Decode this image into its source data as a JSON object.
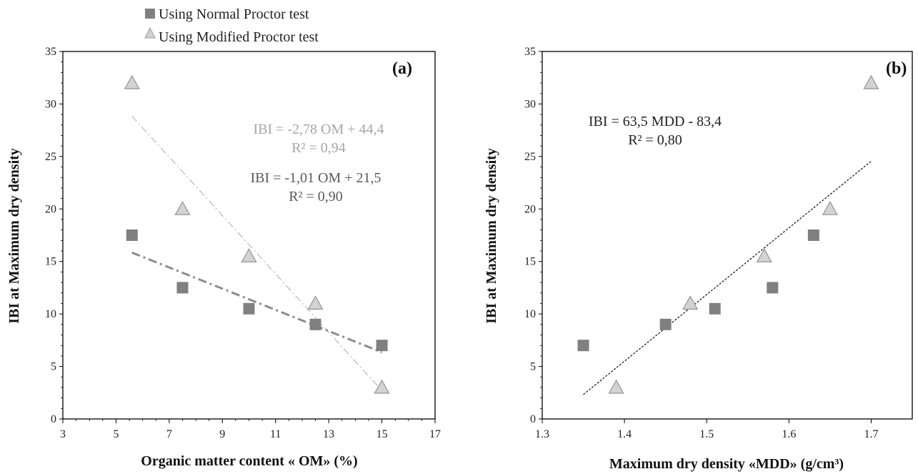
{
  "legend": {
    "normal": "Using Normal Proctor test",
    "modified": "Using Modified Proctor test"
  },
  "colors": {
    "normal_marker": "#808080",
    "modified_marker": "#d3d3d3",
    "modified_marker_stroke": "#9a9a9a",
    "normal_trend": "#8c8c8c",
    "modified_trend": "#bdbdbd",
    "text_dark": "#595959",
    "text_light": "#a6a6a6",
    "axis": "#000000"
  },
  "chart_data": [
    {
      "type": "scatter",
      "panel_label": "(a)",
      "xlabel": "Organic matter content « OM» (%)",
      "ylabel": "IBI at Maximum dry density",
      "xlim": [
        3,
        17
      ],
      "ylim": [
        0,
        35
      ],
      "xticks": [
        "3",
        "5",
        "7",
        "9",
        "11",
        "13",
        "15",
        "17"
      ],
      "xtick_values": [
        3,
        5,
        7,
        9,
        11,
        13,
        15,
        17
      ],
      "yticks": [
        "0",
        "5",
        "10",
        "15",
        "20",
        "25",
        "30",
        "35"
      ],
      "ytick_values": [
        0,
        5,
        10,
        15,
        20,
        25,
        30,
        35
      ],
      "series": [
        {
          "name": "Using Normal Proctor test",
          "marker": "square",
          "x": [
            5.6,
            7.5,
            10.0,
            12.5,
            15.0
          ],
          "y": [
            17.5,
            12.5,
            10.5,
            9.0,
            7.0
          ],
          "trendline": {
            "slope": -1.01,
            "intercept": 21.5,
            "x_range": [
              5.6,
              15.0
            ],
            "style": "dash-dot-bold"
          }
        },
        {
          "name": "Using Modified Proctor test",
          "marker": "triangle",
          "x": [
            5.6,
            7.5,
            10.0,
            12.5,
            15.0
          ],
          "y": [
            32.0,
            20.0,
            15.5,
            11.0,
            3.0
          ],
          "trendline": {
            "slope": -2.78,
            "intercept": 44.4,
            "x_range": [
              5.6,
              15.0
            ],
            "style": "dash-dot-thin"
          }
        }
      ],
      "annotations": [
        {
          "text": "IBI = -2,78 OM + 44,4",
          "tone": "light"
        },
        {
          "text": "R² = 0,94",
          "tone": "light"
        },
        {
          "text": "IBI = -1,01 OM + 21,5",
          "tone": "dark"
        },
        {
          "text": "R² = 0,90",
          "tone": "dark"
        }
      ]
    },
    {
      "type": "scatter",
      "panel_label": "(b)",
      "xlabel": "Maximum dry density «MDD» (g/cm³)",
      "ylabel": "IBI at Maximum dry density",
      "xlim": [
        1.3,
        1.75
      ],
      "ylim": [
        0,
        35
      ],
      "xticks": [
        "1.3",
        "1.4",
        "1.5",
        "1.6",
        "1.7"
      ],
      "xtick_values": [
        1.3,
        1.4,
        1.5,
        1.6,
        1.7
      ],
      "yticks": [
        "0",
        "5",
        "10",
        "15",
        "20",
        "25",
        "30",
        "35"
      ],
      "ytick_values": [
        0,
        5,
        10,
        15,
        20,
        25,
        30,
        35
      ],
      "series": [
        {
          "name": "Using Normal Proctor test",
          "marker": "square",
          "x": [
            1.35,
            1.45,
            1.51,
            1.58,
            1.63
          ],
          "y": [
            7.0,
            9.0,
            10.5,
            12.5,
            17.5
          ]
        },
        {
          "name": "Using Modified Proctor test",
          "marker": "triangle",
          "x": [
            1.39,
            1.48,
            1.57,
            1.65,
            1.7
          ],
          "y": [
            3.0,
            11.0,
            15.5,
            20.0,
            32.0
          ]
        }
      ],
      "trendline": {
        "slope": 63.5,
        "intercept": -83.4,
        "x_range": [
          1.35,
          1.7
        ],
        "style": "dotted"
      },
      "annotations": [
        {
          "text": "IBI = 63,5 MDD - 83,4",
          "tone": "black"
        },
        {
          "text": "R² = 0,80",
          "tone": "black"
        }
      ]
    }
  ]
}
